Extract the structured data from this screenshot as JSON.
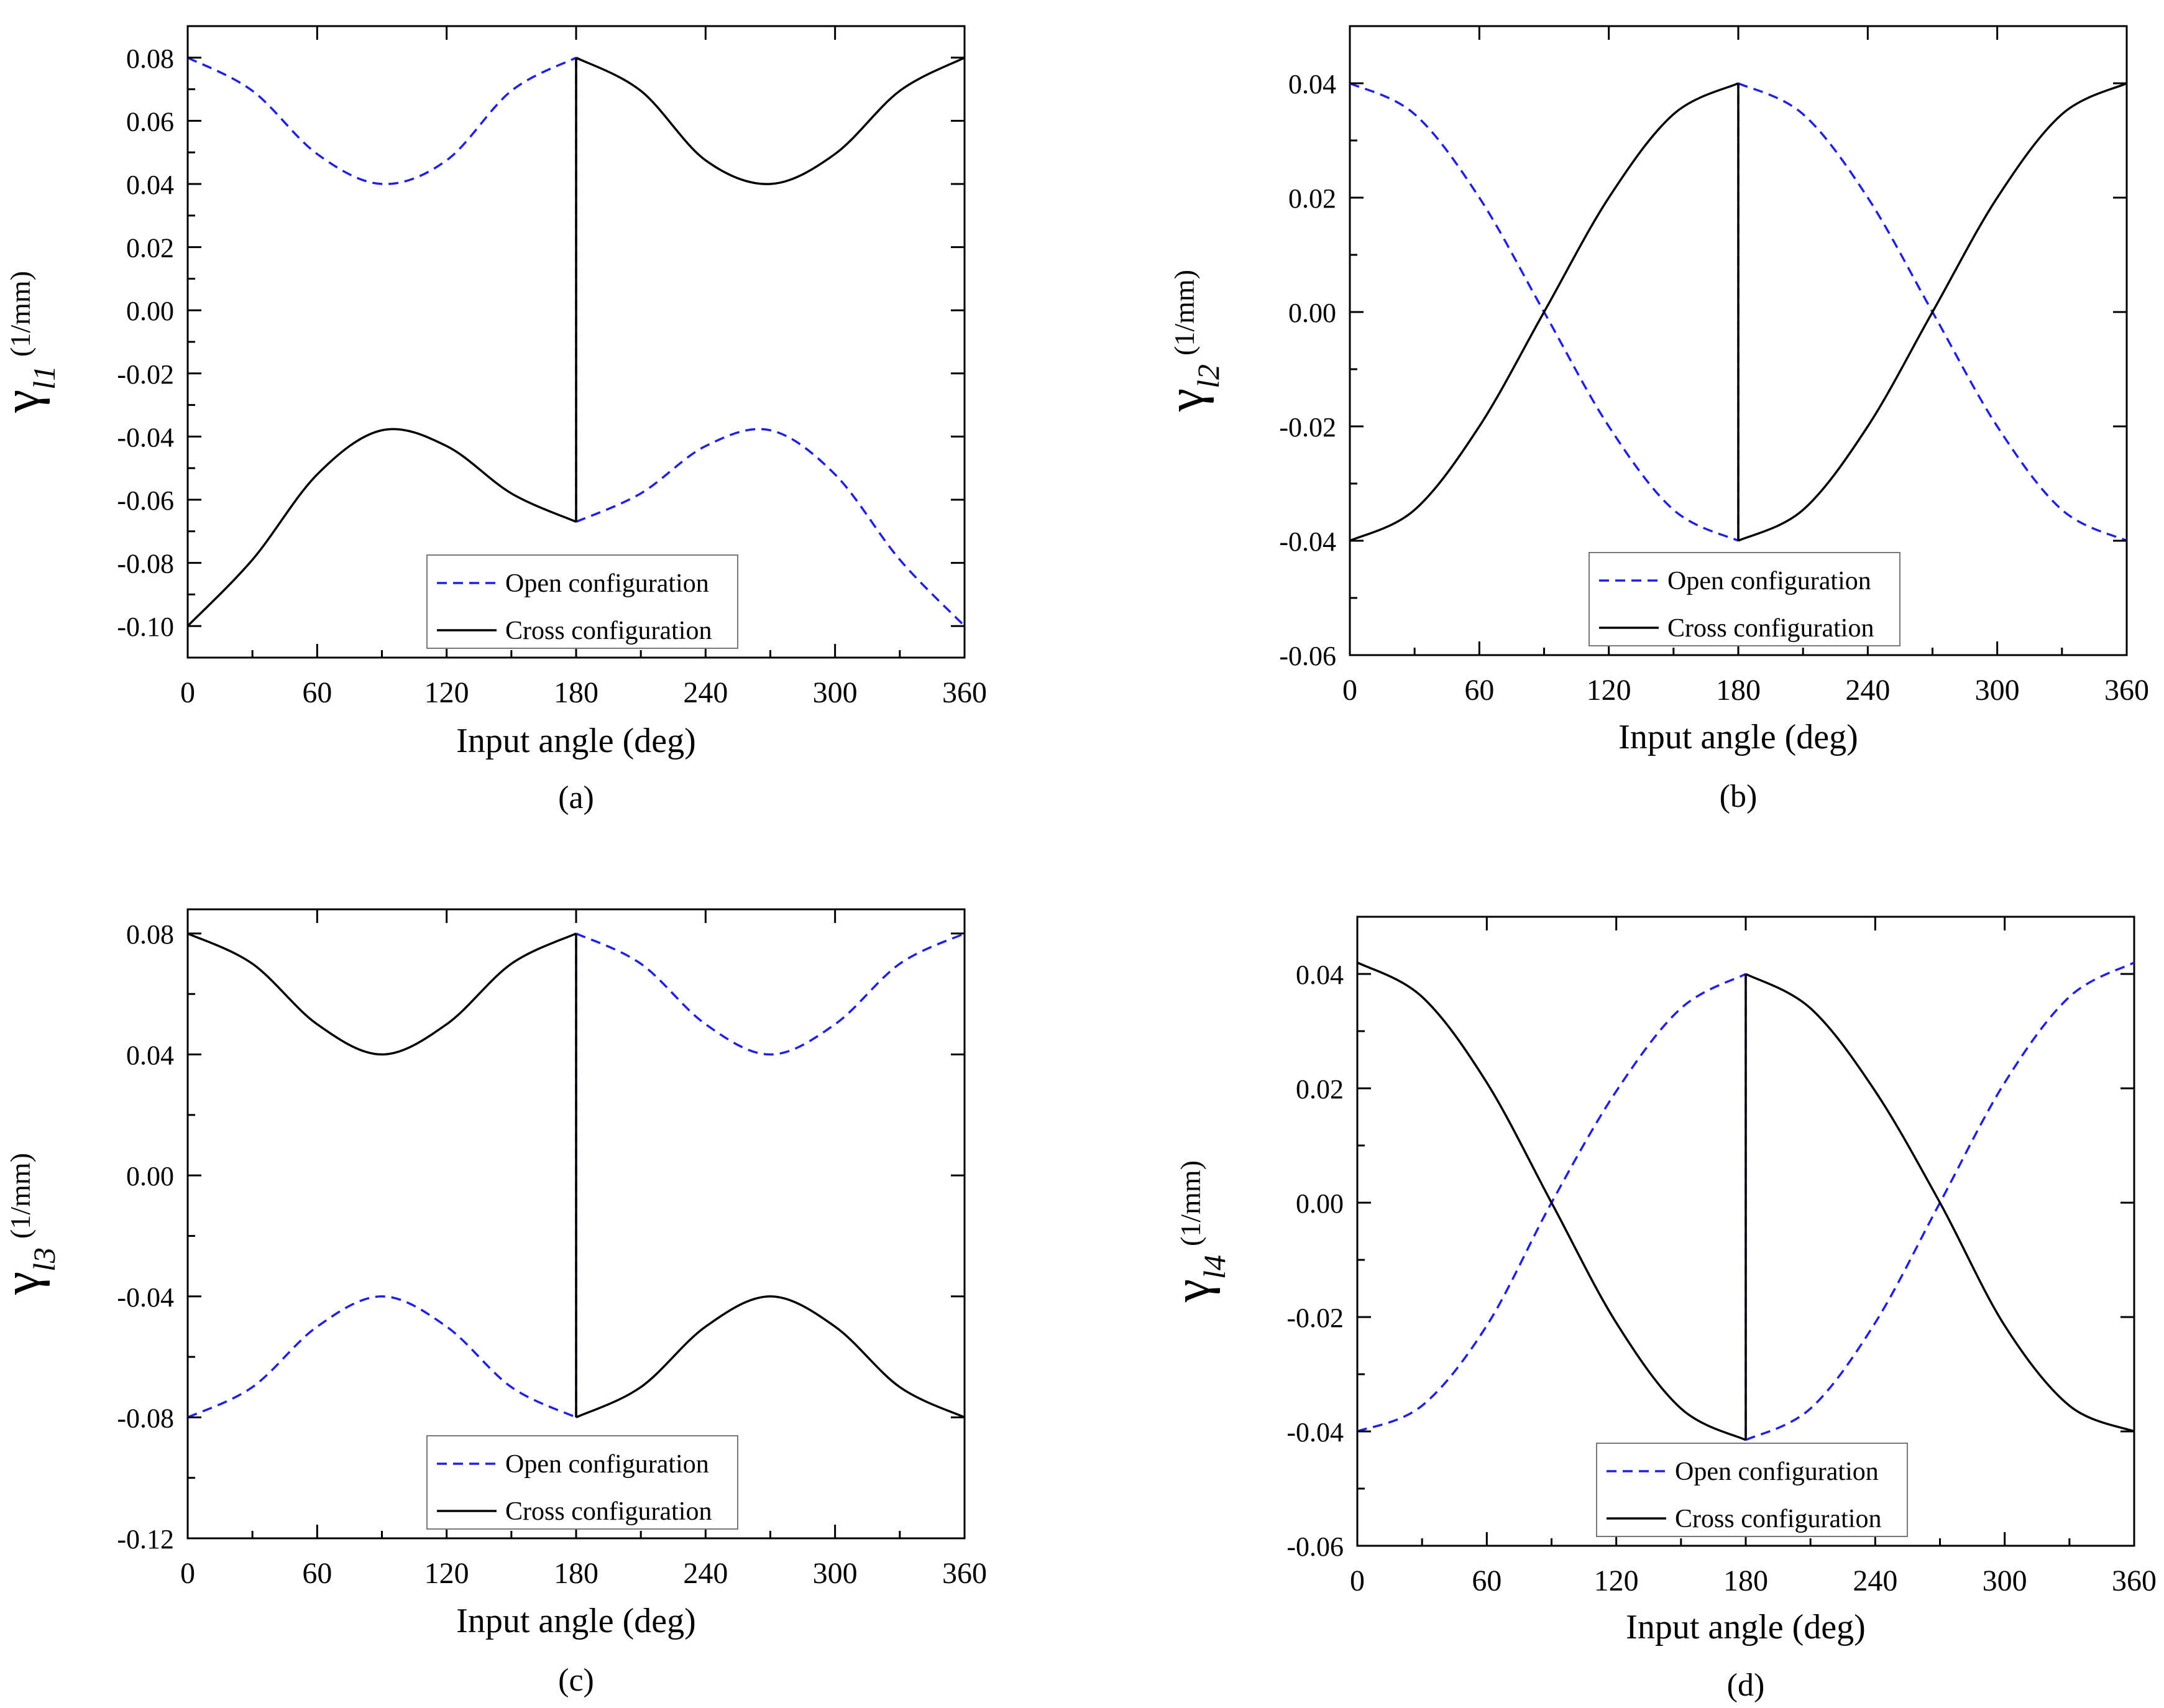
{
  "figure": {
    "colors": {
      "open": "#1f1fe6",
      "cross": "#000000",
      "frame": "#000000"
    },
    "line_styles": {
      "open": "dashed",
      "cross": "solid"
    }
  },
  "chart_data": [
    {
      "id": "a",
      "type": "line",
      "caption": "(a)",
      "xlabel": "Input angle (deg)",
      "ylabel_symbol": "γ",
      "ylabel_sub": "l1",
      "ylabel_unit": "(1/mm)",
      "xlim": [
        0,
        360
      ],
      "ylim": [
        -0.11,
        0.09
      ],
      "xticks": [
        0,
        60,
        120,
        180,
        240,
        300,
        360
      ],
      "xtick_labels": [
        "0",
        "60",
        "120",
        "180",
        "240",
        "300",
        "360"
      ],
      "yticks": [
        0.08,
        0.06,
        0.04,
        0.02,
        0.0,
        -0.02,
        -0.04,
        -0.06,
        -0.08,
        -0.1
      ],
      "ytick_labels": [
        "0.08",
        "0.06",
        "0.04",
        "0.02",
        "0.00",
        "-0.02",
        "-0.04",
        "-0.06",
        "-0.08",
        "-0.10"
      ],
      "legend": {
        "position": "lower-center",
        "entries": [
          "Open configuration",
          "Cross configuration"
        ]
      },
      "series": [
        {
          "name": "Open configuration",
          "style": "dashed",
          "x": [
            0,
            30,
            60,
            90,
            120,
            150,
            180,
            180,
            210,
            240,
            270,
            300,
            330,
            360
          ],
          "y": [
            0.08,
            0.0695,
            0.0495,
            0.04,
            0.0475,
            0.0695,
            0.08,
            -0.067,
            -0.058,
            -0.043,
            -0.038,
            -0.052,
            -0.079,
            -0.1
          ]
        },
        {
          "name": "Cross configuration",
          "style": "solid",
          "x": [
            0,
            30,
            60,
            90,
            120,
            150,
            180,
            180,
            210,
            240,
            270,
            300,
            330,
            360
          ],
          "y": [
            -0.1,
            -0.079,
            -0.052,
            -0.038,
            -0.043,
            -0.058,
            -0.067,
            0.08,
            0.0695,
            0.0475,
            0.04,
            0.0495,
            0.0695,
            0.08
          ]
        }
      ]
    },
    {
      "id": "b",
      "type": "line",
      "caption": "(b)",
      "xlabel": "Input angle (deg)",
      "ylabel_symbol": "γ",
      "ylabel_sub": "l2",
      "ylabel_unit": "(1/mm)",
      "xlim": [
        0,
        360
      ],
      "ylim": [
        -0.06,
        0.05
      ],
      "xticks": [
        0,
        60,
        120,
        180,
        240,
        300,
        360
      ],
      "xtick_labels": [
        "0",
        "60",
        "120",
        "180",
        "240",
        "300",
        "360"
      ],
      "yticks": [
        0.04,
        0.02,
        0.0,
        -0.02,
        -0.04,
        -0.06
      ],
      "ytick_labels": [
        "0.04",
        "0.02",
        "0.00",
        "-0.02",
        "-0.04",
        "-0.06"
      ],
      "legend": {
        "position": "lower-center",
        "entries": [
          "Open configuration",
          "Cross configuration"
        ]
      },
      "series": [
        {
          "name": "Open configuration",
          "style": "dashed",
          "x": [
            0,
            30,
            60,
            90,
            120,
            150,
            180,
            180,
            210,
            240,
            270,
            300,
            330,
            360
          ],
          "y": [
            0.04,
            0.0346,
            0.02,
            0.0,
            -0.02,
            -0.0346,
            -0.04,
            0.04,
            0.0346,
            0.02,
            0.0,
            -0.02,
            -0.0346,
            -0.04
          ]
        },
        {
          "name": "Cross configuration",
          "style": "solid",
          "x": [
            0,
            30,
            60,
            90,
            120,
            150,
            180,
            180,
            210,
            240,
            270,
            300,
            330,
            360
          ],
          "y": [
            -0.04,
            -0.0346,
            -0.02,
            0.0,
            0.02,
            0.0346,
            0.04,
            -0.04,
            -0.0346,
            -0.02,
            0.0,
            0.02,
            0.0346,
            0.04
          ]
        }
      ]
    },
    {
      "id": "c",
      "type": "line",
      "caption": "(c)",
      "xlabel": "Input angle (deg)",
      "ylabel_symbol": "γ",
      "ylabel_sub": "l3",
      "ylabel_unit": "(1/mm)",
      "xlim": [
        0,
        360
      ],
      "ylim": [
        -0.12,
        0.088
      ],
      "xticks": [
        0,
        60,
        120,
        180,
        240,
        300,
        360
      ],
      "xtick_labels": [
        "0",
        "60",
        "120",
        "180",
        "240",
        "300",
        "360"
      ],
      "yticks": [
        0.08,
        0.04,
        0.0,
        -0.04,
        -0.08,
        -0.12
      ],
      "ytick_labels": [
        "0.08",
        "0.04",
        "0.00",
        "-0.04",
        "-0.08",
        "-0.12"
      ],
      "legend": {
        "position": "lower-center",
        "entries": [
          "Open configuration",
          "Cross configuration"
        ]
      },
      "series": [
        {
          "name": "Open configuration",
          "style": "dashed",
          "x": [
            0,
            30,
            60,
            90,
            120,
            150,
            180,
            180,
            210,
            240,
            270,
            300,
            330,
            360
          ],
          "y": [
            -0.08,
            -0.07,
            -0.05,
            -0.04,
            -0.05,
            -0.07,
            -0.08,
            0.08,
            0.07,
            0.05,
            0.04,
            0.05,
            0.07,
            0.08
          ]
        },
        {
          "name": "Cross configuration",
          "style": "solid",
          "x": [
            0,
            30,
            60,
            90,
            120,
            150,
            180,
            180,
            210,
            240,
            270,
            300,
            330,
            360
          ],
          "y": [
            0.08,
            0.07,
            0.05,
            0.04,
            0.05,
            0.07,
            0.08,
            -0.08,
            -0.07,
            -0.05,
            -0.04,
            -0.05,
            -0.07,
            -0.08
          ]
        }
      ]
    },
    {
      "id": "d",
      "type": "line",
      "caption": "(d)",
      "xlabel": "Input angle (deg)",
      "ylabel_symbol": "γ",
      "ylabel_sub": "l4",
      "ylabel_unit": "(1/mm)",
      "xlim": [
        0,
        360
      ],
      "ylim": [
        -0.06,
        0.05
      ],
      "xticks": [
        0,
        60,
        120,
        180,
        240,
        300,
        360
      ],
      "xtick_labels": [
        "0",
        "60",
        "120",
        "180",
        "240",
        "300",
        "360"
      ],
      "yticks": [
        0.04,
        0.02,
        0.0,
        -0.02,
        -0.04,
        -0.06
      ],
      "ytick_labels": [
        "0.04",
        "0.02",
        "0.00",
        "-0.02",
        "-0.04",
        "-0.06"
      ],
      "legend": {
        "position": "lower-center",
        "entries": [
          "Open configuration",
          "Cross configuration"
        ]
      },
      "series": [
        {
          "name": "Open configuration",
          "style": "dashed",
          "x": [
            0,
            30,
            60,
            90,
            120,
            150,
            180,
            180,
            210,
            240,
            270,
            300,
            330,
            360
          ],
          "y": [
            -0.04,
            -0.0355,
            -0.0215,
            0.0,
            0.0195,
            0.034,
            0.04,
            -0.0415,
            -0.036,
            -0.021,
            0.0,
            0.021,
            0.036,
            0.042
          ]
        },
        {
          "name": "Cross configuration",
          "style": "solid",
          "x": [
            0,
            30,
            60,
            90,
            120,
            150,
            180,
            180,
            210,
            240,
            270,
            300,
            330,
            360
          ],
          "y": [
            0.042,
            0.036,
            0.021,
            0.0,
            -0.021,
            -0.036,
            -0.0415,
            0.04,
            0.034,
            0.0195,
            0.0,
            -0.0215,
            -0.0355,
            -0.04
          ]
        }
      ]
    }
  ]
}
